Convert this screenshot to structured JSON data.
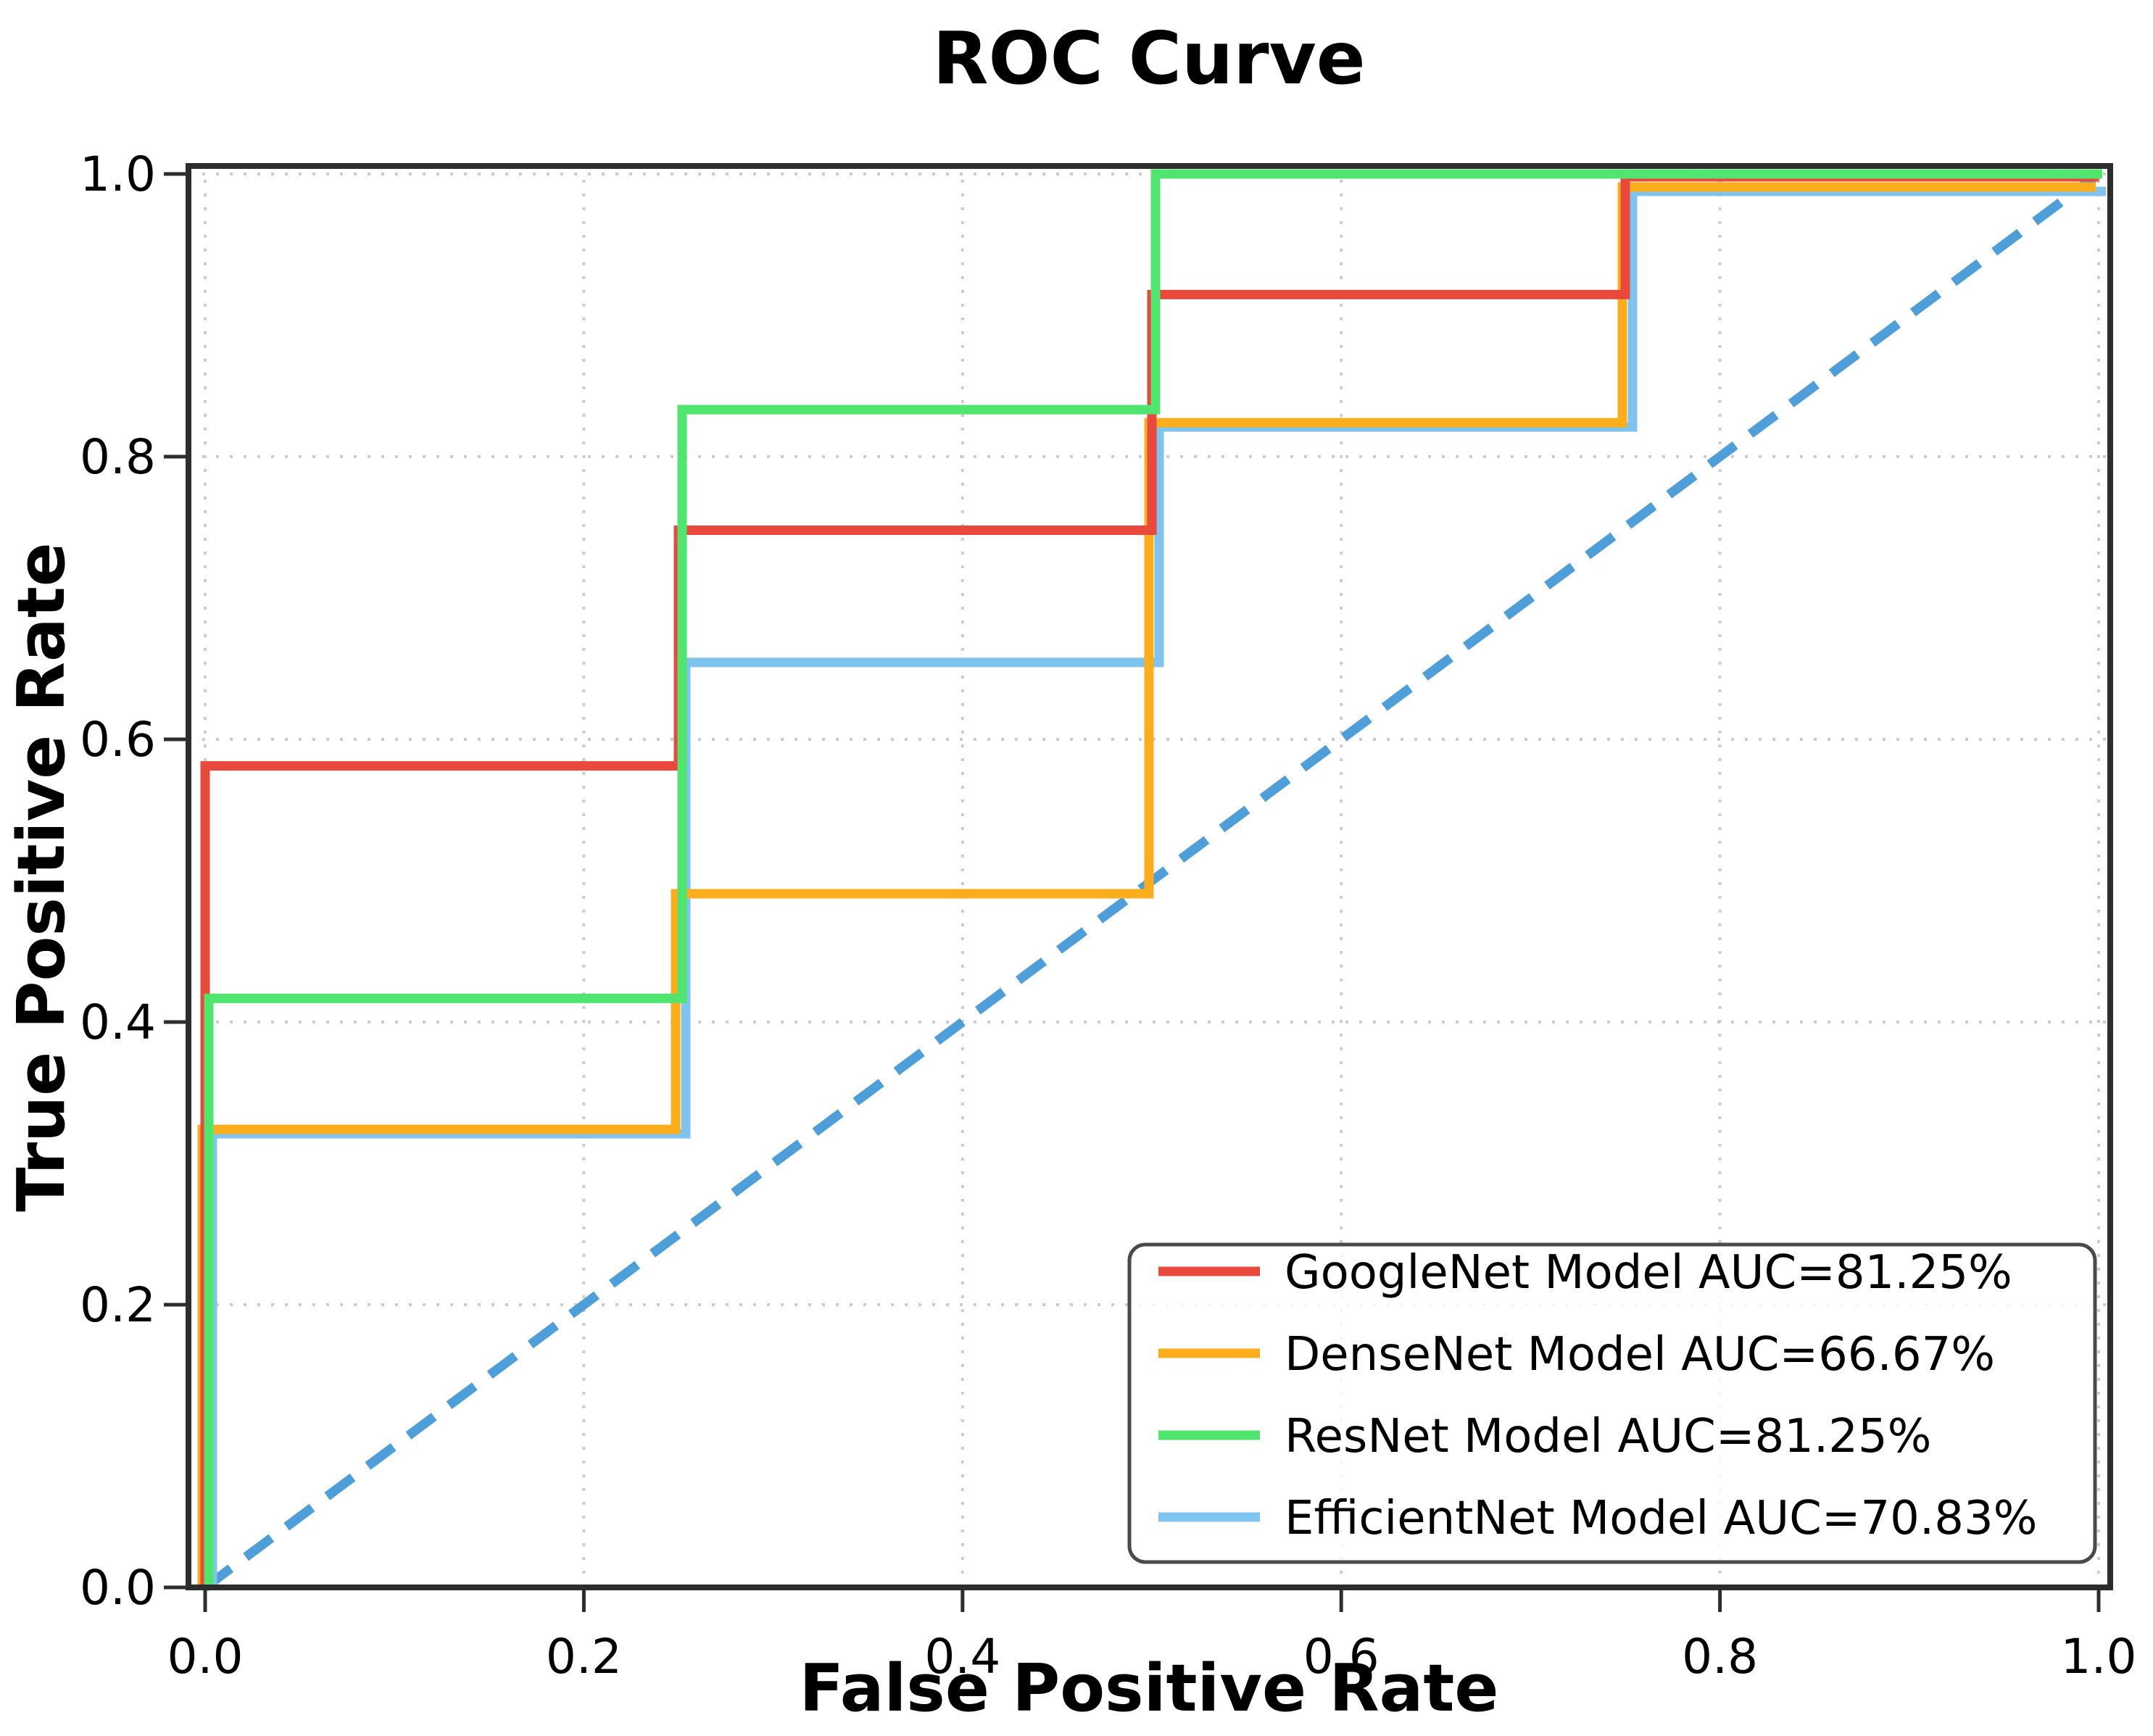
{
  "title": "ROC Curve",
  "chart_data": {
    "type": "line",
    "subtype": "roc-step-curves",
    "title": "ROC Curve",
    "xlabel": "False Positive Rate",
    "ylabel": "True Positive Rate",
    "xlim": [
      0.0,
      1.0
    ],
    "ylim": [
      0.0,
      1.0
    ],
    "grid": "dotted",
    "legend_position": "lower right",
    "xticks": [
      0.0,
      0.2,
      0.4,
      0.6,
      0.8,
      1.0
    ],
    "yticks": [
      0.0,
      0.2,
      0.4,
      0.6,
      0.8,
      1.0
    ],
    "xtick_labels": [
      "0.0",
      "0.2",
      "0.4",
      "0.6",
      "0.8",
      "1.0"
    ],
    "ytick_labels": [
      "0.0",
      "0.2",
      "0.4",
      "0.6",
      "0.8",
      "1.0"
    ],
    "diagonal": {
      "name": "chance-line",
      "style": "dashed",
      "x": [
        0.0,
        1.0
      ],
      "y": [
        0.0,
        1.0
      ],
      "color": "#4d9ed9"
    },
    "series": [
      {
        "name": "GoogleNet",
        "label": "GoogleNet Model AUC=81.25%",
        "auc": "81.25%",
        "color": "#e8493c",
        "fpr": [
          0.0,
          0.0,
          0.25,
          0.25,
          0.5,
          0.5,
          0.75,
          0.75,
          1.0
        ],
        "tpr": [
          0.0,
          0.5833,
          0.5833,
          0.75,
          0.75,
          0.9167,
          0.9167,
          1.0,
          1.0
        ]
      },
      {
        "name": "DenseNet",
        "label": "DenseNet Model AUC=66.67%",
        "auc": "66.67%",
        "color": "#fbad1b",
        "fpr": [
          0.0,
          0.0,
          0.25,
          0.25,
          0.5,
          0.5,
          0.75,
          0.75,
          1.0
        ],
        "tpr": [
          0.0,
          0.3333,
          0.3333,
          0.5,
          0.5,
          0.8333,
          0.8333,
          1.0,
          1.0
        ]
      },
      {
        "name": "ResNet",
        "label": "ResNet Model AUC=81.25%",
        "auc": "81.25%",
        "color": "#4fe56e",
        "fpr": [
          0.0,
          0.0,
          0.25,
          0.25,
          0.5,
          0.5,
          1.0
        ],
        "tpr": [
          0.0,
          0.4167,
          0.4167,
          0.8333,
          0.8333,
          1.0,
          1.0
        ]
      },
      {
        "name": "EfficientNet",
        "label": "EfficientNet Model AUC=70.83%",
        "auc": "70.83%",
        "color": "#7ec4ef",
        "fpr": [
          0.0,
          0.0,
          0.25,
          0.25,
          0.5,
          0.5,
          0.75,
          0.75,
          1.0
        ],
        "tpr": [
          0.0,
          0.3333,
          0.3333,
          0.6667,
          0.6667,
          0.8333,
          0.8333,
          1.0,
          1.0
        ]
      }
    ],
    "colors": {
      "grid": "#cccccc",
      "spine": "#2d2d2d",
      "text": "#000000",
      "legend_border": "#4a4a4a",
      "legend_background": "rgba(255,255,255,0.8)"
    }
  }
}
